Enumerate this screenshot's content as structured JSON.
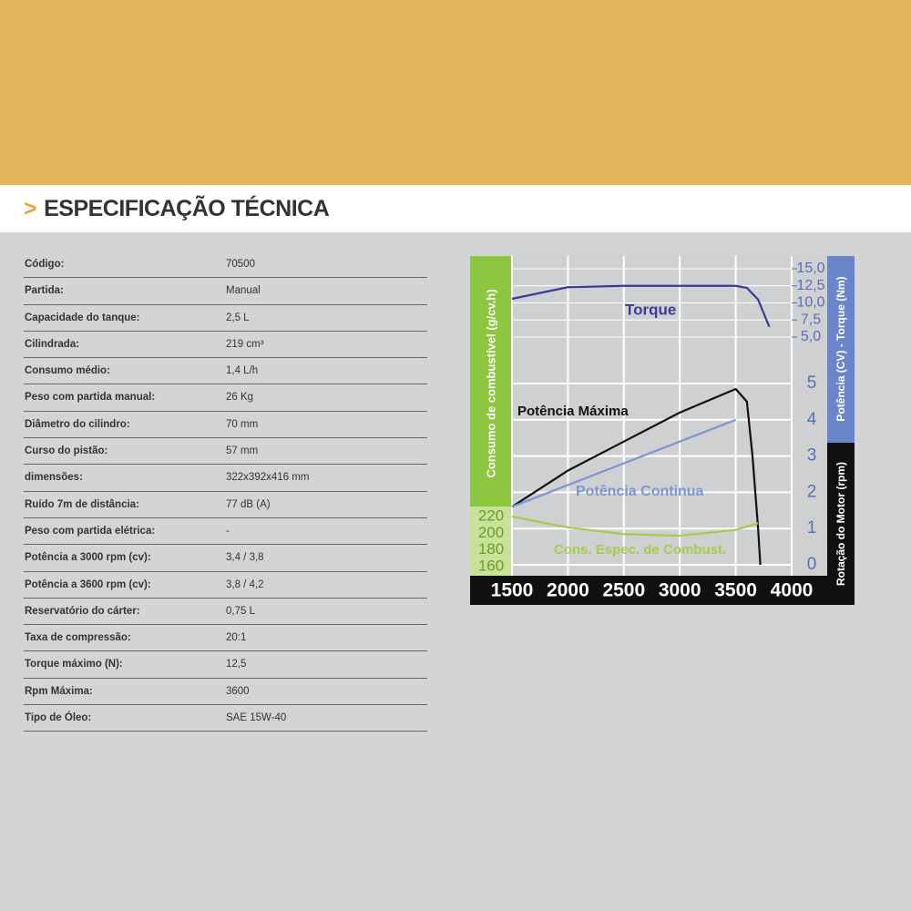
{
  "header": {
    "marker": ">",
    "title": "ESPECIFICAÇÃO TÉCNICA"
  },
  "table": {
    "rows": [
      [
        "Código:",
        "70500"
      ],
      [
        "Partida:",
        "Manual"
      ],
      [
        "Capacidade do tanque:",
        "2,5 L"
      ],
      [
        "Cilindrada:",
        "219 cm³"
      ],
      [
        "Consumo médio:",
        "1,4 L/h"
      ],
      [
        "Peso com partida manual:",
        "26 Kg"
      ],
      [
        "Diâmetro do cilindro:",
        "70 mm"
      ],
      [
        "Curso do pistão:",
        "57 mm"
      ],
      [
        "dimensões:",
        "322x392x416 mm"
      ],
      [
        "Ruído 7m de distância:",
        "77 dB (A)"
      ],
      [
        "Peso com partida elétrica:",
        "-"
      ],
      [
        "Potência a 3000 rpm (cv):",
        "3,4 / 3,8"
      ],
      [
        "Potência a 3600 rpm (cv):",
        "3,8 / 4,2"
      ],
      [
        "Reservatório do cárter:",
        "0,75 L"
      ],
      [
        "Taxa de compressão:",
        "20:1"
      ],
      [
        "Torque máximo (N):",
        "12,5"
      ],
      [
        "Rpm Máxima:",
        "3600"
      ],
      [
        "Tipo de Óleo:",
        "SAE 15W-40"
      ]
    ]
  },
  "chart_data": {
    "type": "line",
    "x_label": "Rotação do Motor (rpm)",
    "y_label": "Potência (CV) - Torque (Nm)",
    "y3_label": "Consumo de combustível (g/cv.h)",
    "xlim": [
      1500,
      4000
    ],
    "xticks": [
      1500,
      2000,
      2500,
      3000,
      3500,
      4000
    ],
    "ylim": [
      0,
      5
    ],
    "yticks": [
      0,
      1,
      2,
      3,
      4,
      5
    ],
    "y2lim": [
      5,
      15
    ],
    "y2ticks": [
      {
        "value": 15,
        "label": "15,0"
      },
      {
        "value": 12.5,
        "label": "12,5"
      },
      {
        "value": 10,
        "label": "10,0"
      },
      {
        "value": 7.5,
        "label": "7,5"
      },
      {
        "value": 5,
        "label": "5,0"
      }
    ],
    "y3lim": [
      160,
      220
    ],
    "y3ticks": [
      220,
      200,
      180,
      160
    ],
    "grid": true,
    "series": [
      {
        "name": "Torque",
        "color": "#3b3a94",
        "axis": "y2",
        "x": [
          1500,
          2000,
          2500,
          3000,
          3500,
          3600,
          3700,
          3800
        ],
        "values": [
          10.6,
          12.3,
          12.5,
          12.5,
          12.5,
          12.2,
          10.5,
          6.5
        ]
      },
      {
        "name": "Potência Máxima",
        "color": "#111111",
        "axis": "y",
        "x": [
          1500,
          2000,
          2500,
          3000,
          3500,
          3600,
          3650,
          3700,
          3720
        ],
        "values": [
          1.6,
          2.6,
          3.4,
          4.2,
          4.85,
          4.5,
          3.0,
          1.0,
          0
        ]
      },
      {
        "name": "Potência Continua",
        "color": "#7b96d2",
        "axis": "y",
        "x": [
          1500,
          2000,
          2500,
          3000,
          3500
        ],
        "values": [
          1.6,
          2.2,
          2.8,
          3.4,
          4.0
        ]
      },
      {
        "name": "Cons. Espec. de Combust.",
        "color": "#a6cc4a",
        "axis": "y3",
        "x": [
          1500,
          2000,
          2500,
          3000,
          3500,
          3700
        ],
        "values": [
          220,
          207,
          199,
          197,
          204,
          212
        ]
      }
    ]
  }
}
